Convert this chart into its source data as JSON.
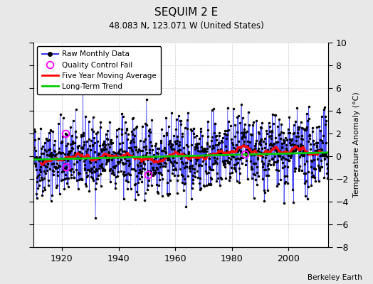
{
  "title": "SEQUIM 2 E",
  "subtitle": "48.083 N, 123.071 W (United States)",
  "ylabel": "Temperature Anomaly (°C)",
  "attribution": "Berkeley Earth",
  "year_start": 1910,
  "year_end": 2014,
  "ylim": [
    -8,
    10
  ],
  "yticks": [
    -8,
    -6,
    -4,
    -2,
    0,
    2,
    4,
    6,
    8,
    10
  ],
  "xticks": [
    1920,
    1940,
    1960,
    1980,
    2000
  ],
  "bg_color": "#e8e8e8",
  "plot_bg_color": "#ffffff",
  "raw_color": "#3333ff",
  "marker_color": "#000000",
  "qc_color": "#ff00ff",
  "moving_avg_color": "#ff0000",
  "trend_color": "#00cc00",
  "grid_color": "#cccccc",
  "seed": 42,
  "trend_slope": 0.006,
  "trend_intercept": 0.0,
  "noise_std": 2.0,
  "qc_fail_indices": [
    [
      1921,
      3
    ],
    [
      1921,
      5
    ],
    [
      1950,
      6
    ],
    [
      1984,
      8
    ]
  ]
}
